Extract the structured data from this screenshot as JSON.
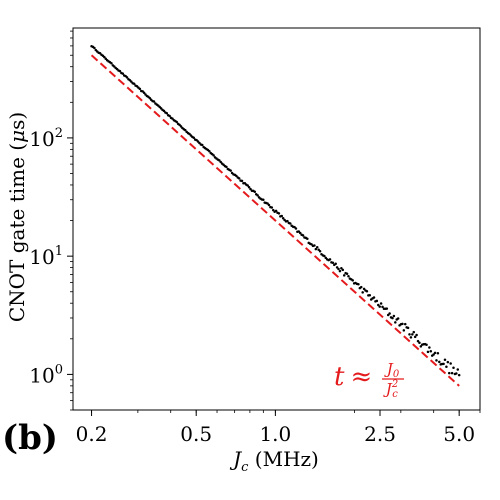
{
  "chart_data": {
    "type": "scatter",
    "panel_label": "(b)",
    "xlabel": {
      "symbol": "J",
      "sub": "c",
      "unit": " (MHz)"
    },
    "ylabel": {
      "prefix": "CNOT gate time (",
      "symbol": "μ",
      "suffix": "s)"
    },
    "xscale": "log",
    "yscale": "log",
    "xlim": [
      0.17,
      6.0
    ],
    "ylim": [
      0.5,
      850
    ],
    "x_ticks": [
      {
        "value": 0.2,
        "label": "0.2"
      },
      {
        "value": 0.5,
        "label": "0.5"
      },
      {
        "value": 1.0,
        "label": "1.0"
      },
      {
        "value": 2.5,
        "label": "2.5"
      },
      {
        "value": 5.0,
        "label": "5.0"
      }
    ],
    "y_ticks": [
      {
        "value": 1,
        "base": "10",
        "exp": "0"
      },
      {
        "value": 10,
        "base": "10",
        "exp": "1"
      },
      {
        "value": 100,
        "base": "10",
        "exp": "2"
      }
    ],
    "grid": false,
    "series": [
      {
        "kind": "points",
        "color": "#000000",
        "x_range": [
          0.2,
          5.0
        ],
        "n_points": 260,
        "law": "y = 24 / x^2",
        "coef": 24,
        "exponent": -2
      },
      {
        "kind": "dashed-line",
        "color": "#e41a1c",
        "x_range": [
          0.2,
          5.0
        ],
        "law": "y = 20 / x^2",
        "coef": 20,
        "exponent": -2
      }
    ],
    "annotation": {
      "lhs": "t",
      "approx": "≈",
      "num_symbol": "J",
      "num_sub": "0",
      "den_symbol": "J",
      "den_sub": "c",
      "den_sup": "2",
      "color": "#e41a1c"
    }
  }
}
